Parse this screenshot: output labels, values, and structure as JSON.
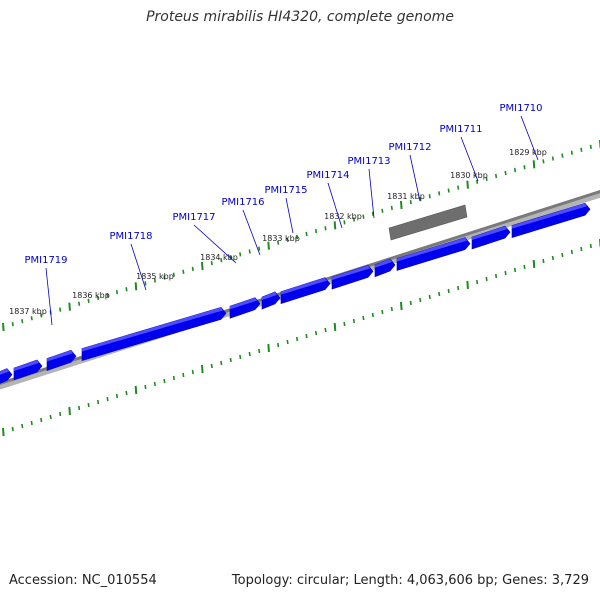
{
  "title": "Proteus mirabilis HI4320, complete genome",
  "footer": {
    "accession": "Accession: NC_010554",
    "stats": "Topology: circular; Length: 4,063,606 bp; Genes: 3,729"
  },
  "colors": {
    "background": "#ffffff",
    "gene_block": "#0000ee",
    "gene_block_top": "#4d4dff",
    "gene_label": "#0000cc",
    "tick": "#1e8c1e",
    "backbone": "#7a7a7a",
    "backbone_shadow": "#b4b4b4",
    "feature_grey": "#6e6e6e"
  },
  "kbp_labels": [
    "1829 kbp",
    "1830 kbp",
    "1831 kbp",
    "1832 kbp",
    "1833 kbp",
    "1834 kbp",
    "1835 kbp",
    "1836 kbp",
    "1837 kbp"
  ],
  "genes": [
    "PMI1710",
    "PMI1711",
    "PMI1712",
    "PMI1713",
    "PMI1714",
    "PMI1715",
    "PMI1716",
    "PMI1717",
    "PMI1718",
    "PMI1719"
  ]
}
